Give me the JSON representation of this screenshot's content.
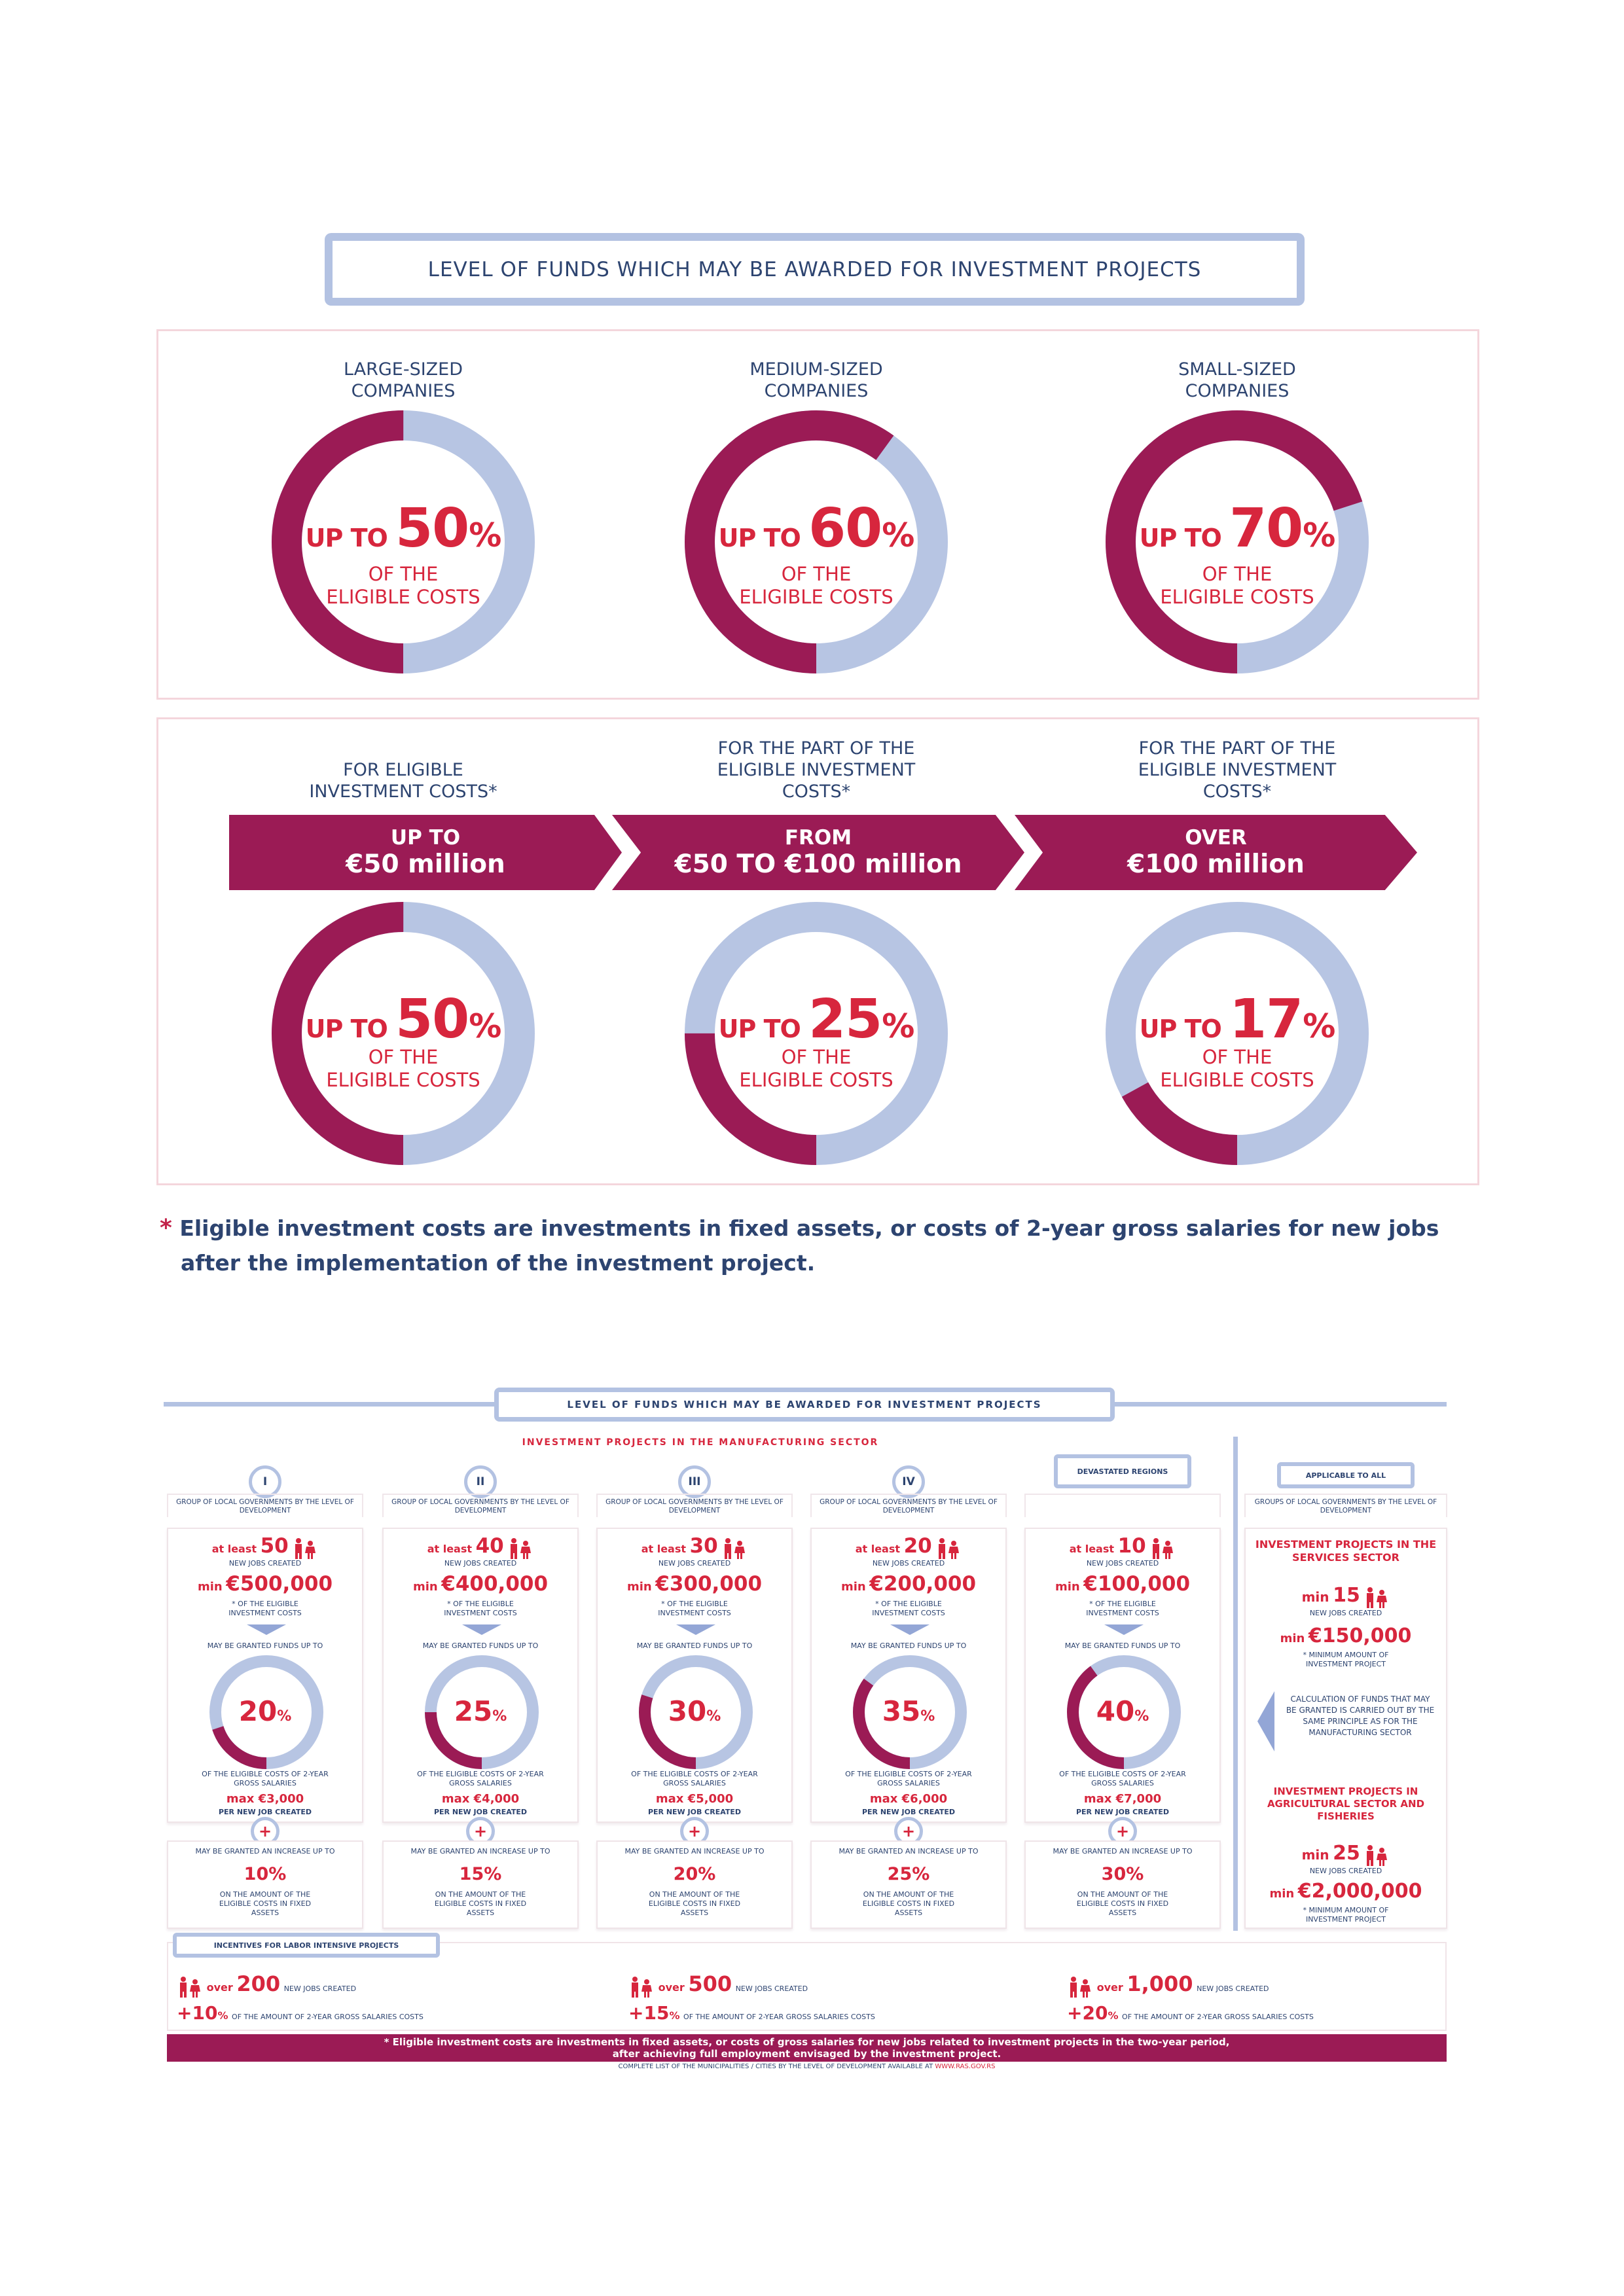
{
  "colors": {
    "magenta": "#9b1b55",
    "light_blue": "#b7c5e3",
    "red": "#d7263d",
    "navy": "#2d4470"
  },
  "top": {
    "title": "LEVEL OF FUNDS WHICH MAY BE AWARDED FOR INVESTMENT PROJECTS",
    "company_donuts": [
      {
        "label": "LARGE-SIZED COMPANIES",
        "up_to": "UP TO",
        "value": "50",
        "pct": 50,
        "sym": "%",
        "l1": "OF THE",
        "l2": "ELIGIBLE COSTS"
      },
      {
        "label": "MEDIUM-SIZED COMPANIES",
        "up_to": "UP TO",
        "value": "60",
        "pct": 60,
        "sym": "%",
        "l1": "OF THE",
        "l2": "ELIGIBLE COSTS"
      },
      {
        "label": "SMALL-SIZED COMPANIES",
        "up_to": "UP TO",
        "value": "70",
        "pct": 70,
        "sym": "%",
        "l1": "OF THE",
        "l2": "ELIGIBLE COSTS"
      }
    ],
    "cost_bands": [
      {
        "header": "FOR ELIGIBLE INVESTMENT COSTS*",
        "line1": "UP TO",
        "line2": "€50 million",
        "up_to": "UP TO",
        "value": "50",
        "pct": 50,
        "sym": "%",
        "l1": "OF THE",
        "l2": "ELIGIBLE COSTS"
      },
      {
        "header": "FOR THE PART OF THE ELIGIBLE INVESTMENT COSTS*",
        "line1": "FROM",
        "line2": "€50 TO €100 million",
        "up_to": "UP TO",
        "value": "25",
        "pct": 25,
        "sym": "%",
        "l1": "OF THE",
        "l2": "ELIGIBLE COSTS"
      },
      {
        "header": "FOR THE PART OF THE ELIGIBLE INVESTMENT COSTS*",
        "line1": "OVER",
        "line2": "€100 million",
        "up_to": "UP TO",
        "value": "17",
        "pct": 17,
        "sym": "%",
        "l1": "OF THE",
        "l2": "ELIGIBLE COSTS"
      }
    ],
    "footnote_star": "*",
    "footnote_line1": "Eligible investment costs are investments in fixed assets, or costs of 2-year gross salaries for new jobs",
    "footnote_line2": "after the implementation of the investment project."
  },
  "bottom": {
    "title": "LEVEL OF FUNDS WHICH MAY BE AWARDED FOR INVESTMENT PROJECTS",
    "manufacturing_title": "INVESTMENT PROJECTS IN THE MANUFACTURING SECTOR",
    "columns": [
      {
        "badge": "I",
        "header": "GROUP OF LOCAL GOVERNMENTS BY THE LEVEL OF DEVELOPMENT",
        "at_least": "at least",
        "jobs": "50",
        "jobs_label": "NEW JOBS CREATED",
        "min": "min",
        "amount": "€500,000",
        "note": "* OF THE ELIGIBLE INVESTMENT COSTS",
        "granted": "MAY BE GRANTED FUNDS UP TO",
        "pct_value": "20",
        "pct": 20,
        "sym": "%",
        "salaries": "OF THE ELIGIBLE COSTS OF 2-YEAR GROSS SALARIES",
        "max": "max €3,000",
        "per_job": "PER NEW JOB CREATED",
        "plus": "+",
        "increase_label": "MAY BE GRANTED AN INCREASE UP TO",
        "increase": "10%",
        "increase_note": "ON THE AMOUNT OF THE ELIGIBLE COSTS IN FIXED ASSETS"
      },
      {
        "badge": "II",
        "header": "GROUP OF LOCAL GOVERNMENTS BY THE LEVEL OF DEVELOPMENT",
        "at_least": "at least",
        "jobs": "40",
        "jobs_label": "NEW JOBS CREATED",
        "min": "min",
        "amount": "€400,000",
        "note": "* OF THE ELIGIBLE INVESTMENT COSTS",
        "granted": "MAY BE GRANTED FUNDS UP TO",
        "pct_value": "25",
        "pct": 25,
        "sym": "%",
        "salaries": "OF THE ELIGIBLE COSTS OF 2-YEAR GROSS SALARIES",
        "max": "max €4,000",
        "per_job": "PER NEW JOB CREATED",
        "plus": "+",
        "increase_label": "MAY BE GRANTED AN INCREASE UP TO",
        "increase": "15%",
        "increase_note": "ON THE AMOUNT OF THE ELIGIBLE COSTS IN FIXED ASSETS"
      },
      {
        "badge": "III",
        "header": "GROUP OF LOCAL GOVERNMENTS BY THE LEVEL OF DEVELOPMENT",
        "at_least": "at least",
        "jobs": "30",
        "jobs_label": "NEW JOBS CREATED",
        "min": "min",
        "amount": "€300,000",
        "note": "* OF THE ELIGIBLE INVESTMENT COSTS",
        "granted": "MAY BE GRANTED FUNDS UP TO",
        "pct_value": "30",
        "pct": 30,
        "sym": "%",
        "salaries": "OF THE ELIGIBLE COSTS OF 2-YEAR GROSS SALARIES",
        "max": "max €5,000",
        "per_job": "PER NEW JOB CREATED",
        "plus": "+",
        "increase_label": "MAY BE GRANTED AN INCREASE UP TO",
        "increase": "20%",
        "increase_note": "ON THE AMOUNT OF THE ELIGIBLE COSTS IN FIXED ASSETS"
      },
      {
        "badge": "IV",
        "header": "GROUP OF LOCAL GOVERNMENTS BY THE LEVEL OF DEVELOPMENT",
        "at_least": "at least",
        "jobs": "20",
        "jobs_label": "NEW JOBS CREATED",
        "min": "min",
        "amount": "€200,000",
        "note": "* OF THE ELIGIBLE INVESTMENT COSTS",
        "granted": "MAY BE GRANTED FUNDS UP TO",
        "pct_value": "35",
        "pct": 35,
        "sym": "%",
        "salaries": "OF THE ELIGIBLE COSTS OF 2-YEAR GROSS SALARIES",
        "max": "max €6,000",
        "per_job": "PER NEW JOB CREATED",
        "plus": "+",
        "increase_label": "MAY BE GRANTED AN INCREASE UP TO",
        "increase": "25%",
        "increase_note": "ON THE AMOUNT OF THE ELIGIBLE COSTS IN FIXED ASSETS"
      },
      {
        "badge": "DEVASTATED REGIONS",
        "header": "",
        "at_least": "at least",
        "jobs": "10",
        "jobs_label": "NEW JOBS CREATED",
        "min": "min",
        "amount": "€100,000",
        "note": "* OF THE ELIGIBLE INVESTMENT COSTS",
        "granted": "MAY BE GRANTED FUNDS UP TO",
        "pct_value": "40",
        "pct": 40,
        "sym": "%",
        "salaries": "OF THE ELIGIBLE COSTS OF 2-YEAR GROSS SALARIES",
        "max": "max €7,000",
        "per_job": "PER NEW JOB CREATED",
        "plus": "+",
        "increase_label": "MAY BE GRANTED AN INCREASE UP TO",
        "increase": "30%",
        "increase_note": "ON THE AMOUNT OF THE ELIGIBLE COSTS IN FIXED ASSETS"
      }
    ],
    "other": {
      "badge": "APPLICABLE TO ALL",
      "header": "GROUPS OF LOCAL GOVERNMENTS BY THE LEVEL OF DEVELOPMENT",
      "services_title": "INVESTMENT PROJECTS IN THE SERVICES SECTOR",
      "services_min": "min",
      "services_jobs": "15",
      "services_jobs_label": "NEW JOBS CREATED",
      "services_amount_min": "min",
      "services_amount": "€150,000",
      "services_note": "* MINIMUM AMOUNT OF INVESTMENT PROJECT",
      "calculation": "CALCULATION OF FUNDS THAT MAY BE GRANTED IS CARRIED OUT BY THE SAME PRINCIPLE AS FOR THE MANUFACTURING SECTOR",
      "agri_title": "INVESTMENT PROJECTS IN AGRICULTURAL SECTOR AND FISHERIES",
      "agri_min": "min",
      "agri_jobs": "25",
      "agri_jobs_label": "NEW JOBS CREATED",
      "agri_amount_min": "min",
      "agri_amount": "€2,000,000",
      "agri_note": "* MINIMUM AMOUNT OF INVESTMENT PROJECT"
    },
    "labor": {
      "badge": "INCENTIVES FOR LABOR INTENSIVE PROJECTS",
      "items": [
        {
          "over": "over",
          "jobs": "200",
          "jobs_label": "NEW JOBS CREATED",
          "bonus": "+10",
          "sym": "%",
          "bonus_label": "OF THE AMOUNT OF 2-YEAR GROSS SALARIES COSTS"
        },
        {
          "over": "over",
          "jobs": "500",
          "jobs_label": "NEW JOBS CREATED",
          "bonus": "+15",
          "sym": "%",
          "bonus_label": "OF THE AMOUNT OF 2-YEAR GROSS SALARIES COSTS"
        },
        {
          "over": "over",
          "jobs": "1,000",
          "jobs_label": "NEW JOBS CREATED",
          "bonus": "+20",
          "sym": "%",
          "bonus_label": "OF THE AMOUNT OF 2-YEAR GROSS SALARIES COSTS"
        }
      ]
    },
    "footnote_line1": "* Eligible investment costs are investments in fixed assets, or costs of gross salaries for new jobs related to investment projects in the two-year period,",
    "footnote_line2": "after achieving full employment envisaged by the investment project.",
    "source_text": "COMPLETE LIST OF THE MUNICIPALITIES / CITIES BY THE LEVEL OF DEVELOPMENT AVAILABLE AT",
    "source_link": "WWW.RAS.GOV.RS"
  }
}
